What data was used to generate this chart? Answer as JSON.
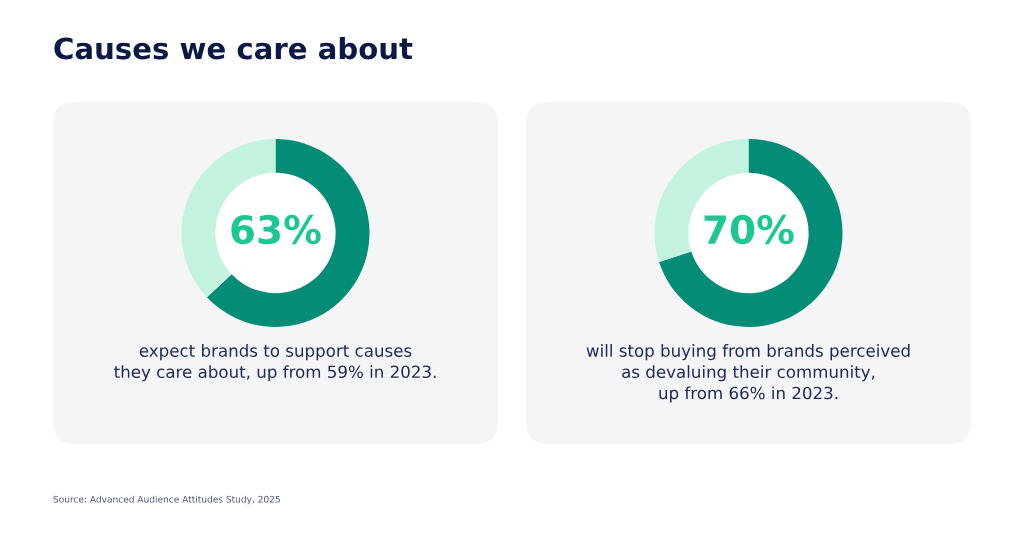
{
  "chart_data": [
    {
      "type": "donut",
      "title": "Causes we care about",
      "categories": [
        null,
        null
      ],
      "values": [
        63,
        37
      ],
      "colors": [
        "#038c76",
        "#c3f3de"
      ],
      "value_labels": [
        "63%",
        null
      ],
      "annotations": [
        "expect brands to support causes\nthey care about, up from 59% in 2023.",
        "Source: Advanced Audience Attitudes Study, 2025"
      ]
    },
    {
      "type": "donut",
      "categories": [
        null,
        null
      ],
      "values": [
        70,
        30
      ],
      "colors": [
        "#038c76",
        "#c3f3de"
      ],
      "value_labels": [
        "70%",
        null
      ],
      "annotations": [
        "will stop buying from brands perceived\nas devaluing their community,\nup from 66% in 2023."
      ]
    }
  ]
}
